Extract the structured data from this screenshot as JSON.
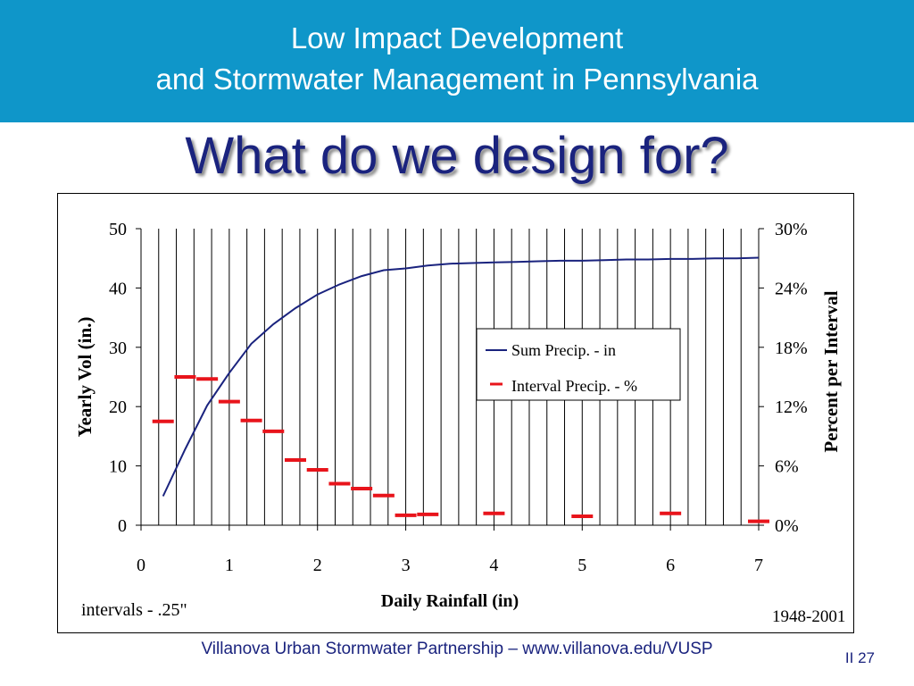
{
  "header": {
    "line1": "Low Impact Development",
    "line2": "and Stormwater Management in Pennsylvania"
  },
  "slide_title": "What do we design for?",
  "footer": {
    "credit": "Villanova Urban Stormwater Partnership – www.villanova.edu/VUSP",
    "page": "II 27"
  },
  "colors": {
    "header_bg": "#0f96c9",
    "title": "#1a237e",
    "sum_line": "#1a237e",
    "interval_marker": "#e8141b"
  },
  "chart_data": {
    "type": "line",
    "xlabel": "Daily Rainfall (in)",
    "ylabel": "Yearly Vol (in.)",
    "y2label": "Percent per Interval",
    "xlim": [
      0,
      7
    ],
    "ylim": [
      0,
      50
    ],
    "y2lim": [
      0,
      0.3
    ],
    "x_ticks": [
      "0",
      "1",
      "2",
      "3",
      "4",
      "5",
      "6",
      "7"
    ],
    "y_ticks": [
      "0",
      "10",
      "20",
      "30",
      "40",
      "50"
    ],
    "y2_ticks": [
      "0%",
      "6%",
      "12%",
      "18%",
      "24%",
      "30%"
    ],
    "grid": "vertical",
    "legend_position": "center-right",
    "annotations": {
      "intervals_note": "intervals - .25\"",
      "period": "1948-2001"
    },
    "series": [
      {
        "name": "Sum Precip. - in",
        "style": "line",
        "axis": "left",
        "x": [
          0.25,
          0.5,
          0.75,
          1.0,
          1.25,
          1.5,
          1.75,
          2.0,
          2.25,
          2.5,
          2.75,
          3.0,
          3.25,
          3.5,
          3.75,
          4.0,
          4.25,
          4.5,
          4.75,
          5.0,
          5.25,
          5.5,
          5.75,
          6.0,
          6.25,
          6.5,
          6.75,
          7.0
        ],
        "y": [
          4.9,
          12.8,
          20.2,
          25.7,
          30.6,
          33.9,
          36.6,
          38.9,
          40.6,
          42.0,
          43.0,
          43.3,
          43.8,
          44.1,
          44.2,
          44.3,
          44.4,
          44.5,
          44.6,
          44.6,
          44.7,
          44.8,
          44.8,
          44.9,
          44.9,
          45.0,
          45.0,
          45.1
        ]
      },
      {
        "name": "Interval Precip. - %",
        "style": "marker",
        "axis": "right",
        "x": [
          0.25,
          0.5,
          0.75,
          1.0,
          1.25,
          1.5,
          1.75,
          2.0,
          2.25,
          2.5,
          2.75,
          3.0,
          3.25,
          4.0,
          5.0,
          6.0,
          7.0
        ],
        "y": [
          0.105,
          0.15,
          0.148,
          0.125,
          0.106,
          0.095,
          0.066,
          0.056,
          0.042,
          0.037,
          0.03,
          0.01,
          0.011,
          0.012,
          0.009,
          0.012,
          0.004
        ]
      }
    ]
  }
}
